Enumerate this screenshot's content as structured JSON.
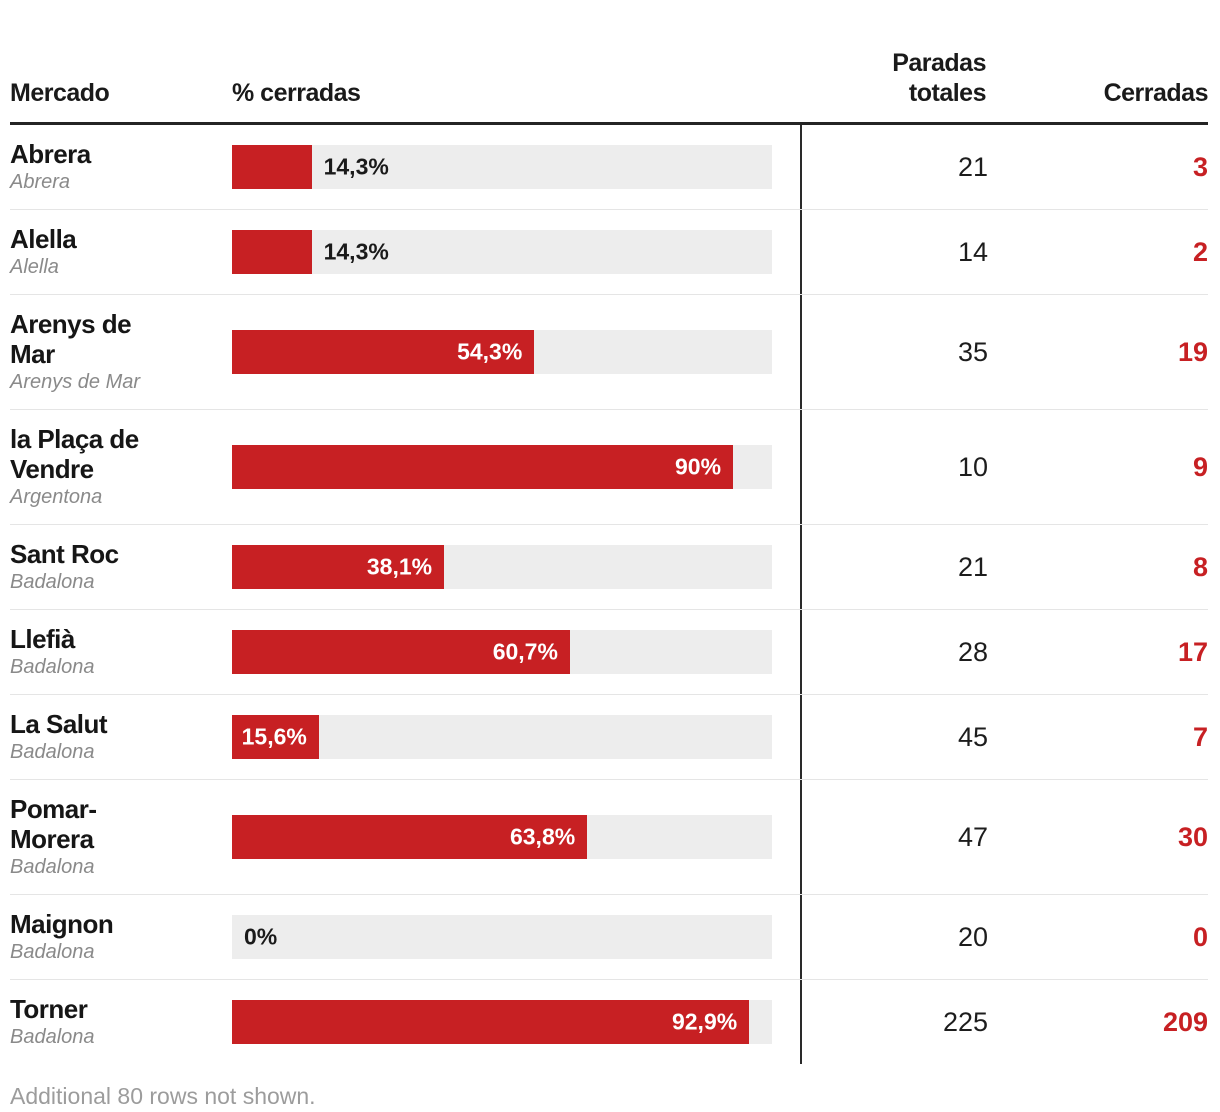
{
  "header": {
    "mercado": "Mercado",
    "pct_cerradas": "% cerradas",
    "paradas_totales": "Paradas totales",
    "cerradas": "Cerradas"
  },
  "footer": {
    "note": "Additional 80 rows not shown."
  },
  "colors": {
    "accent_red": "#c72023",
    "bar_track": "#ededed",
    "text_dark": "#1a1a1a",
    "text_muted_italic": "#8a8a8a",
    "footer_text": "#9c9c9c",
    "row_divider": "#e5e5e5",
    "header_rule": "#242424",
    "column_divider": "#2a2a2a"
  },
  "chart_data": {
    "type": "bar",
    "orientation": "horizontal",
    "value_unit": "%",
    "bar_scale_max": 97,
    "columns": [
      "Mercado",
      "% cerradas",
      "Paradas totales",
      "Cerradas"
    ],
    "rows": [
      {
        "market": "Abrera",
        "municipality": "Abrera",
        "pct": 14.3,
        "pct_label": "14,3%",
        "label_inside": false,
        "paradas": 21,
        "cerradas": 3
      },
      {
        "market": "Alella",
        "municipality": "Alella",
        "pct": 14.3,
        "pct_label": "14,3%",
        "label_inside": false,
        "paradas": 14,
        "cerradas": 2
      },
      {
        "market": "Arenys de Mar",
        "municipality": "Arenys de Mar",
        "pct": 54.3,
        "pct_label": "54,3%",
        "label_inside": true,
        "paradas": 35,
        "cerradas": 19
      },
      {
        "market": "la Plaça de Vendre",
        "municipality": "Argentona",
        "pct": 90,
        "pct_label": "90%",
        "label_inside": true,
        "paradas": 10,
        "cerradas": 9
      },
      {
        "market": "Sant Roc",
        "municipality": "Badalona",
        "pct": 38.1,
        "pct_label": "38,1%",
        "label_inside": true,
        "paradas": 21,
        "cerradas": 8
      },
      {
        "market": "Llefià",
        "municipality": "Badalona",
        "pct": 60.7,
        "pct_label": "60,7%",
        "label_inside": true,
        "paradas": 28,
        "cerradas": 17
      },
      {
        "market": "La Salut",
        "municipality": "Badalona",
        "pct": 15.6,
        "pct_label": "15,6%",
        "label_inside": true,
        "paradas": 45,
        "cerradas": 7
      },
      {
        "market": "Pomar-Morera",
        "municipality": "Badalona",
        "pct": 63.8,
        "pct_label": "63,8%",
        "label_inside": true,
        "paradas": 47,
        "cerradas": 30
      },
      {
        "market": "Maignon",
        "municipality": "Badalona",
        "pct": 0,
        "pct_label": "0%",
        "label_inside": false,
        "paradas": 20,
        "cerradas": 0
      },
      {
        "market": "Torner",
        "municipality": "Badalona",
        "pct": 92.9,
        "pct_label": "92,9%",
        "label_inside": true,
        "paradas": 225,
        "cerradas": 209
      }
    ],
    "note": "Additional 80 rows not shown."
  }
}
